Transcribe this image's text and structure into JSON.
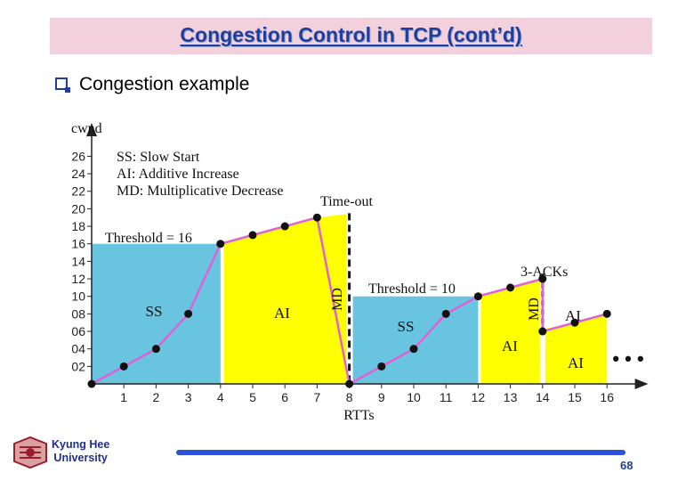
{
  "slide": {
    "title": "Congestion Control in TCP (cont’d)",
    "bullet": "Congestion example",
    "logo_text": [
      "Kyung Hee",
      "University"
    ],
    "page_number": "68",
    "colors": {
      "title": "#1f3f9f",
      "title_bar": "#f2d0dc",
      "footer_line": "#2d52d8"
    }
  },
  "chart_data": {
    "type": "line",
    "ylabel": "cwnd",
    "xlabel": "RTTs",
    "xlim": [
      0,
      17
    ],
    "ylim": [
      0,
      28
    ],
    "x_ticks": [
      "1",
      "2",
      "3",
      "4",
      "5",
      "6",
      "7",
      "8",
      "9",
      "10",
      "11",
      "12",
      "13",
      "14",
      "15",
      "16"
    ],
    "y_ticks": [
      "02",
      "04",
      "06",
      "08",
      "10",
      "12",
      "14",
      "16",
      "18",
      "20",
      "22",
      "24",
      "26"
    ],
    "legend_lines": [
      "SS: Slow Start",
      "AI: Additive Increase",
      "MD: Multiplicative Decrease"
    ],
    "series": [
      {
        "points": [
          [
            0,
            0
          ],
          [
            1,
            2
          ],
          [
            2,
            4
          ],
          [
            3,
            8
          ],
          [
            4,
            16
          ],
          [
            5,
            17
          ],
          [
            6,
            18
          ],
          [
            7,
            19
          ],
          [
            8,
            0
          ],
          [
            9,
            2
          ],
          [
            10,
            4
          ],
          [
            11,
            8
          ],
          [
            12,
            10
          ],
          [
            13,
            11
          ],
          [
            14,
            12
          ],
          [
            14,
            6
          ],
          [
            15,
            7
          ],
          [
            16,
            8
          ]
        ],
        "color": "#e060d8"
      }
    ],
    "regions": [
      {
        "label": "SS",
        "color": "#69c4e0",
        "x_from": 0,
        "x_to": 4
      },
      {
        "label": "AI",
        "color": "#ffff00",
        "x_from": 4,
        "x_to": 8
      },
      {
        "label": "SS",
        "color": "#69c4e0",
        "x_from": 8,
        "x_to": 12
      },
      {
        "label": "AI",
        "color": "#ffff00",
        "x_from": 12,
        "x_to": 14
      },
      {
        "label": "AI",
        "color": "#ffff00",
        "x_from": 14,
        "x_to": 16
      }
    ],
    "annotations": {
      "threshold1": "Threshold = 16",
      "threshold2": "Threshold = 10",
      "timeout": "Time-out",
      "three_acks": "3-ACKs",
      "md": "MD",
      "ai_extra": "AI",
      "ellipsis": "• • •"
    }
  }
}
